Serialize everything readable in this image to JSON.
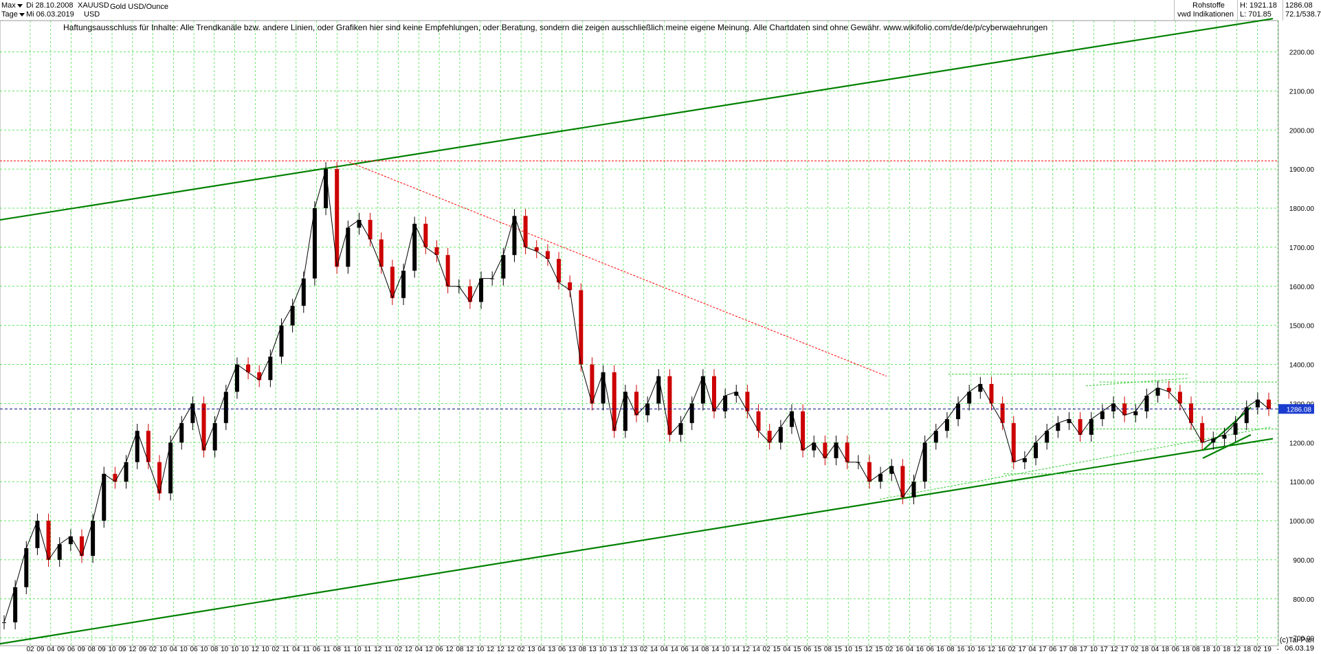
{
  "header": {
    "range_label": "Max",
    "interval_label": "Tage",
    "date_from": "Di 28.10.2008",
    "date_to": "Mi 06.03.2019",
    "symbol": "XAUUSD",
    "currency": "USD",
    "instrument": "Gold USD/Ounce",
    "category": "Rohstoffe",
    "source": "vwd Indikationen",
    "high": "H: 1921.18",
    "low": "L: 701.85",
    "last": "1286.08",
    "ratio": "72.1/538.7"
  },
  "disclaimer": "Haftungsausschluss für Inhalte: Alle Trendkanäle bzw. andere Linien, oder Grafiken hier sind keine Empfehlungen, oder Beratung, sondern die zeigen ausschließlich meine eigene Meinung. Alle Chartdaten sind ohne Gewähr.  www.wikifolio.com/de/de/p/cyberwaehrungen",
  "footer": {
    "copyright": "(c)Tai-Pan",
    "last_date": "06.03.19"
  },
  "chart_data": {
    "type": "line",
    "title": "Gold USD/Ounce",
    "ylim": [
      680,
      2280
    ],
    "yticks": [
      "700.00",
      "800.00",
      "900.00",
      "1000.00",
      "1100.00",
      "1200.00",
      "1300.00",
      "1400.00",
      "1500.00",
      "1600.00",
      "1700.00",
      "1800.00",
      "1900.00",
      "2000.00",
      "2100.00",
      "2200.00"
    ],
    "last_price_label": "1286.08",
    "grid": true,
    "colors": {
      "up": "#000000",
      "down": "#cc0000",
      "channel": "#008000",
      "aux": "#33cc33",
      "resist": "#ff0000",
      "last": "#000080",
      "grid": "#33dd33"
    },
    "xticks": [
      "02",
      "09",
      "04",
      "09",
      "06",
      "09",
      "08",
      "09",
      "10",
      "09",
      "12",
      "09",
      "02",
      "10",
      "04",
      "10",
      "06",
      "10",
      "08",
      "10",
      "10",
      "10",
      "12",
      "10",
      "02",
      "11",
      "04",
      "11",
      "06",
      "11",
      "08",
      "11",
      "10",
      "11",
      "12",
      "11",
      "02",
      "12",
      "04",
      "12",
      "06",
      "12",
      "08",
      "12",
      "10",
      "12",
      "12",
      "12",
      "02",
      "13",
      "04",
      "13",
      "06",
      "13",
      "08",
      "13",
      "10",
      "13",
      "12",
      "13",
      "02",
      "14",
      "04",
      "14",
      "06",
      "14",
      "08",
      "14",
      "10",
      "14",
      "12",
      "14",
      "02",
      "15",
      "04",
      "15",
      "06",
      "15",
      "08",
      "15",
      "10",
      "15",
      "12",
      "15",
      "02",
      "16",
      "04",
      "16",
      "06",
      "16",
      "08",
      "16",
      "10",
      "16",
      "12",
      "16",
      "02",
      "17",
      "04",
      "17",
      "06",
      "17",
      "08",
      "17",
      "10",
      "17",
      "12",
      "17",
      "02",
      "18",
      "04",
      "18",
      "06",
      "18",
      "08",
      "18",
      "10",
      "18",
      "12",
      "18",
      "02",
      "19",
      "-"
    ],
    "series": [
      {
        "values": [
          740,
          830,
          930,
          1000,
          900,
          940,
          960,
          910,
          1000,
          1120,
          1100,
          1150,
          1230,
          1150,
          1070,
          1200,
          1250,
          1300,
          1180,
          1250,
          1330,
          1400,
          1380,
          1360,
          1420,
          1500,
          1550,
          1620,
          1800,
          1900,
          1650,
          1750,
          1770,
          1720,
          1650,
          1570,
          1640,
          1760,
          1700,
          1680,
          1600,
          1600,
          1560,
          1620,
          1620,
          1680,
          1780,
          1700,
          1690,
          1670,
          1610,
          1590,
          1400,
          1300,
          1380,
          1230,
          1330,
          1270,
          1300,
          1370,
          1220,
          1250,
          1300,
          1370,
          1280,
          1320,
          1330,
          1280,
          1230,
          1200,
          1240,
          1280,
          1180,
          1200,
          1160,
          1200,
          1150,
          1150,
          1100,
          1120,
          1140,
          1060,
          1100,
          1200,
          1230,
          1260,
          1300,
          1330,
          1350,
          1300,
          1250,
          1150,
          1160,
          1200,
          1230,
          1250,
          1260,
          1220,
          1260,
          1280,
          1300,
          1270,
          1280,
          1320,
          1340,
          1330,
          1300,
          1250,
          1200,
          1210,
          1220,
          1250,
          1290,
          1310,
          1286
        ]
      }
    ],
    "lines": [
      {
        "name": "upper-channel",
        "x": [
          0,
          1852
        ],
        "y": [
          1770,
          2285
        ],
        "color": "#008000"
      },
      {
        "name": "lower-channel",
        "x": [
          0,
          1852
        ],
        "y": [
          685,
          1210
        ],
        "color": "#008000"
      },
      {
        "name": "ath-horizontal",
        "x": [
          0,
          1860
        ],
        "y": [
          1921,
          1921
        ],
        "color": "#ff0000"
      },
      {
        "name": "resistance-diagonal",
        "x": [
          508,
          1290
        ],
        "y": [
          1918,
          1370
        ],
        "color": "#ff0000"
      },
      {
        "name": "support-2015",
        "x": [
          1280,
          1850
        ],
        "y": [
          1055,
          1240
        ],
        "color": "#33cc33"
      },
      {
        "name": "top-band",
        "x": [
          1380,
          1730
        ],
        "y": [
          1375,
          1375
        ],
        "color": "#33cc33"
      },
      {
        "name": "mid-band",
        "x": [
          1580,
          1730
        ],
        "y": [
          1345,
          1365
        ],
        "color": "#33cc33"
      },
      {
        "name": "bottom-band",
        "x": [
          1460,
          1840
        ],
        "y": [
          1120,
          1120
        ],
        "color": "#33cc33"
      },
      {
        "name": "dashed-1355",
        "x": [
          1600,
          1860
        ],
        "y": [
          1355,
          1355
        ],
        "color": "#33cc33"
      },
      {
        "name": "dashed-1235",
        "x": [
          1580,
          1860
        ],
        "y": [
          1235,
          1235
        ],
        "color": "#33cc33"
      },
      {
        "name": "wedge-upper",
        "x": [
          1750,
          1820
        ],
        "y": [
          1180,
          1290
        ],
        "color": "#008000"
      },
      {
        "name": "wedge-lower",
        "x": [
          1750,
          1820
        ],
        "y": [
          1160,
          1220
        ],
        "color": "#008000"
      }
    ]
  }
}
